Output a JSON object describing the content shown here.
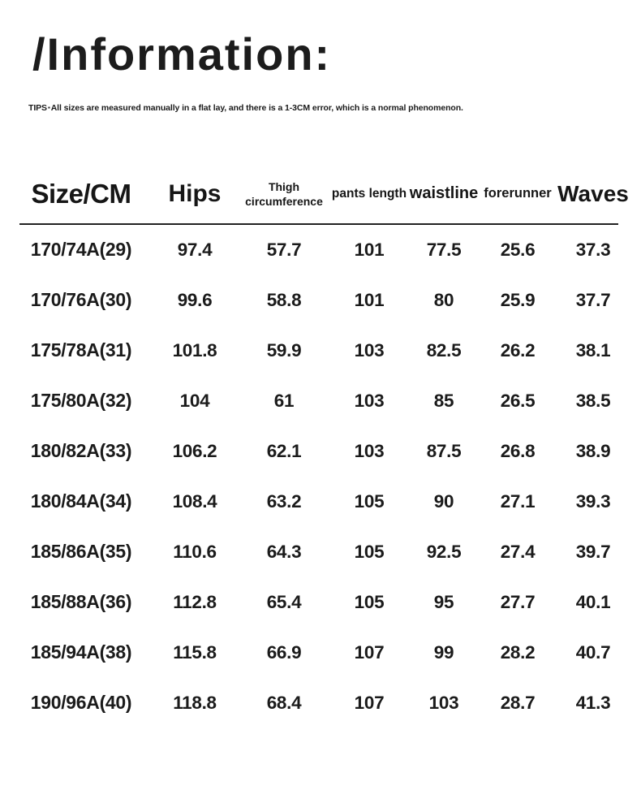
{
  "header": {
    "title": "/Information:"
  },
  "tips": {
    "prefix": "TIPS",
    "bullet": "▪",
    "text": "All sizes are measured manually in a flat lay, and there is a 1-3CM error, which is a normal phenomenon."
  },
  "table": {
    "columns": [
      "Size/CM",
      "Hips",
      "Thigh circumference",
      "pants length",
      "waistline",
      "forerunner",
      "Waves"
    ],
    "rows": [
      [
        "170/74A(29)",
        "97.4",
        "57.7",
        "101",
        "77.5",
        "25.6",
        "37.3"
      ],
      [
        "170/76A(30)",
        "99.6",
        "58.8",
        "101",
        "80",
        "25.9",
        "37.7"
      ],
      [
        "175/78A(31)",
        "101.8",
        "59.9",
        "103",
        "82.5",
        "26.2",
        "38.1"
      ],
      [
        "175/80A(32)",
        "104",
        "61",
        "103",
        "85",
        "26.5",
        "38.5"
      ],
      [
        "180/82A(33)",
        "106.2",
        "62.1",
        "103",
        "87.5",
        "26.8",
        "38.9"
      ],
      [
        "180/84A(34)",
        "108.4",
        "63.2",
        "105",
        "90",
        "27.1",
        "39.3"
      ],
      [
        "185/86A(35)",
        "110.6",
        "64.3",
        "105",
        "92.5",
        "27.4",
        "39.7"
      ],
      [
        "185/88A(36)",
        "112.8",
        "65.4",
        "105",
        "95",
        "27.7",
        "40.1"
      ],
      [
        "185/94A(38)",
        "115.8",
        "66.9",
        "107",
        "99",
        "28.2",
        "40.7"
      ],
      [
        "190/96A(40)",
        "118.8",
        "68.4",
        "107",
        "103",
        "28.7",
        "41.3"
      ]
    ]
  }
}
